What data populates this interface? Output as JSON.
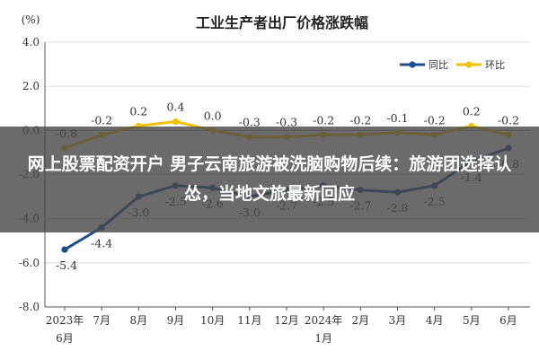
{
  "overlay": {
    "headline": "网上股票配资开户 男子云南旅游被洗脑购物后续：旅游团选择认怂，当地文旅最新回应"
  },
  "chart_data": {
    "type": "line",
    "title": "工业生产者出厂价格涨跌幅",
    "ylabel": "(%)",
    "ylim": [
      -8.0,
      4.0
    ],
    "yticks": [
      "4.0",
      "2.0",
      "0.0",
      "-2.0",
      "-4.0",
      "-6.0",
      "-8.0"
    ],
    "categories": [
      "2023年6月",
      "7月",
      "8月",
      "9月",
      "10月",
      "11月",
      "12月",
      "2024年1月",
      "2月",
      "3月",
      "4月",
      "5月",
      "6月"
    ],
    "category_labels": [
      [
        "2023年",
        "6月"
      ],
      [
        "7月"
      ],
      [
        "8月"
      ],
      [
        "9月"
      ],
      [
        "10月"
      ],
      [
        "11月"
      ],
      [
        "12月"
      ],
      [
        "2024年",
        "1月"
      ],
      [
        "2月"
      ],
      [
        "3月"
      ],
      [
        "4月"
      ],
      [
        "5月"
      ],
      [
        "6月"
      ]
    ],
    "legend_position": "top-right",
    "series": [
      {
        "name": "同比",
        "color": "#1f4e8c",
        "values": [
          -5.4,
          -4.4,
          -3.0,
          -2.5,
          -2.6,
          -3.0,
          -2.7,
          -2.5,
          -2.7,
          -2.8,
          -2.5,
          -1.4,
          -0.8
        ],
        "labels": [
          "-5.4",
          "-4.4",
          "-3.0",
          "-2.5",
          "-2.6",
          "-3.0",
          "-2.7",
          "-2.5",
          "-2.7",
          "-2.8",
          "-2.5",
          "-1.4",
          "-0.8"
        ]
      },
      {
        "name": "环比",
        "color": "#f2c200",
        "values": [
          -0.8,
          -0.2,
          0.2,
          0.4,
          0.0,
          -0.3,
          -0.3,
          -0.2,
          -0.2,
          -0.1,
          -0.2,
          0.2,
          -0.2
        ],
        "labels": [
          "-0.8",
          "-0.2",
          "0.2",
          "0.4",
          "0.0",
          "-0.3",
          "-0.3",
          "-0.2",
          "-0.2",
          "-0.1",
          "-0.2",
          "0.2",
          "-0.2"
        ]
      }
    ]
  }
}
